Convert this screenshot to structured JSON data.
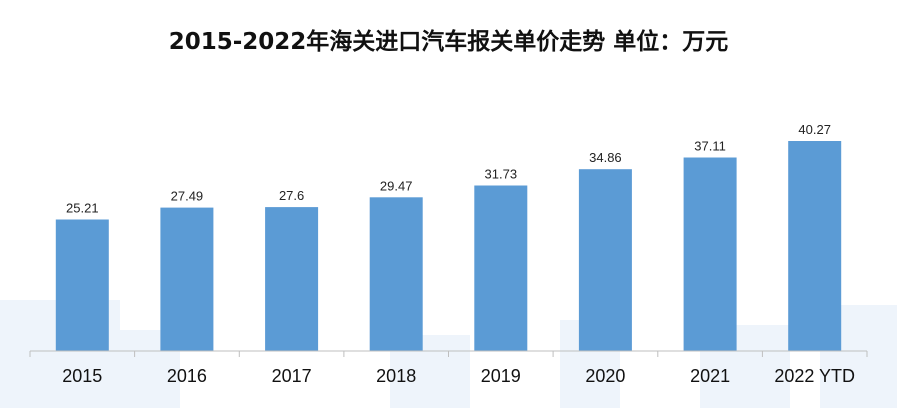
{
  "chart_data": {
    "type": "bar",
    "title": "2015-2022年海关进口汽车报关单价走势  单位：万元",
    "categories": [
      "2015",
      "2016",
      "2017",
      "2018",
      "2019",
      "2020",
      "2021",
      "2022 YTD"
    ],
    "values": [
      25.21,
      27.49,
      27.6,
      29.47,
      31.73,
      34.86,
      37.11,
      40.27
    ],
    "xlabel": "",
    "ylabel": "",
    "ylim": [
      0,
      40.27
    ],
    "grid": false,
    "legend": "none",
    "bar_color": "#5b9bd5"
  }
}
